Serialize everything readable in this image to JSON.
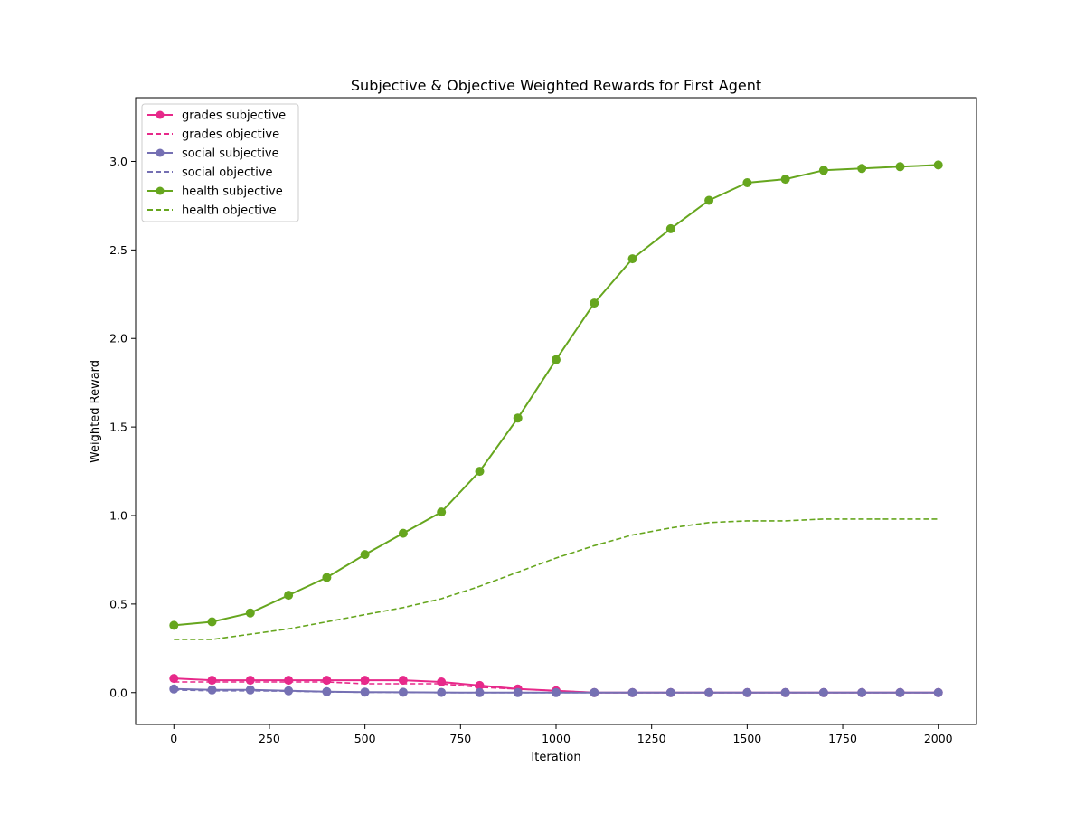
{
  "chart_data": {
    "type": "line",
    "title": "Subjective & Objective Weighted Rewards for First Agent",
    "xlabel": "Iteration",
    "ylabel": "Weighted Reward",
    "xlim": [
      -100,
      2100
    ],
    "ylim": [
      -0.18,
      3.36
    ],
    "x_ticks": [
      0,
      250,
      500,
      750,
      1000,
      1250,
      1500,
      1750,
      2000
    ],
    "x_tick_labels": [
      "0",
      "250",
      "500",
      "750",
      "1000",
      "1250",
      "1500",
      "1750",
      "2000"
    ],
    "y_ticks": [
      0.0,
      0.5,
      1.0,
      1.5,
      2.0,
      2.5,
      3.0
    ],
    "y_tick_labels": [
      "0.0",
      "0.5",
      "1.0",
      "1.5",
      "2.0",
      "2.5",
      "3.0"
    ],
    "grid": false,
    "legend_position": "top-left",
    "series": [
      {
        "name": "grades subjective",
        "color": "#e7298a",
        "style": "solid-marker",
        "x": [
          0,
          100,
          200,
          300,
          400,
          500,
          600,
          700,
          800,
          900,
          1000,
          1100,
          1200,
          1300,
          1400,
          1500,
          1600,
          1700,
          1800,
          1900,
          2000
        ],
        "values": [
          0.08,
          0.07,
          0.07,
          0.07,
          0.07,
          0.07,
          0.07,
          0.06,
          0.04,
          0.02,
          0.01,
          0.0,
          0.0,
          0.0,
          0.0,
          0.0,
          0.0,
          0.0,
          0.0,
          0.0,
          0.0
        ]
      },
      {
        "name": "grades objective",
        "color": "#e7298a",
        "style": "dashed",
        "x": [
          0,
          100,
          200,
          300,
          400,
          500,
          600,
          700,
          800,
          900,
          1000,
          1100,
          1200,
          1300,
          1400,
          1500,
          1600,
          1700,
          1800,
          1900,
          2000
        ],
        "values": [
          0.06,
          0.06,
          0.06,
          0.06,
          0.06,
          0.05,
          0.05,
          0.05,
          0.03,
          0.02,
          0.01,
          0.0,
          0.0,
          0.0,
          0.0,
          0.0,
          0.0,
          0.0,
          0.0,
          0.0,
          0.0
        ]
      },
      {
        "name": "social subjective",
        "color": "#7570b3",
        "style": "solid-marker",
        "x": [
          0,
          100,
          200,
          300,
          400,
          500,
          600,
          700,
          800,
          900,
          1000,
          1100,
          1200,
          1300,
          1400,
          1500,
          1600,
          1700,
          1800,
          1900,
          2000
        ],
        "values": [
          0.02,
          0.015,
          0.015,
          0.01,
          0.005,
          0.003,
          0.002,
          0.001,
          0.0,
          0.0,
          0.0,
          0.0,
          0.0,
          0.0,
          0.0,
          0.0,
          0.0,
          0.0,
          0.0,
          0.0,
          0.0
        ]
      },
      {
        "name": "social objective",
        "color": "#7570b3",
        "style": "dashed",
        "x": [
          0,
          100,
          200,
          300,
          400,
          500,
          600,
          700,
          800,
          900,
          1000,
          1100,
          1200,
          1300,
          1400,
          1500,
          1600,
          1700,
          1800,
          1900,
          2000
        ],
        "values": [
          0.015,
          0.01,
          0.01,
          0.008,
          0.004,
          0.002,
          0.001,
          0.0,
          0.0,
          0.0,
          0.0,
          0.0,
          0.0,
          0.0,
          0.0,
          0.0,
          0.0,
          0.0,
          0.0,
          0.0,
          0.0
        ]
      },
      {
        "name": "health subjective",
        "color": "#66a61e",
        "style": "solid-marker",
        "x": [
          0,
          100,
          200,
          300,
          400,
          500,
          600,
          700,
          800,
          900,
          1000,
          1100,
          1200,
          1300,
          1400,
          1500,
          1600,
          1700,
          1800,
          1900,
          2000
        ],
        "values": [
          0.38,
          0.4,
          0.45,
          0.55,
          0.65,
          0.78,
          0.9,
          1.02,
          1.25,
          1.55,
          1.88,
          2.2,
          2.45,
          2.62,
          2.78,
          2.88,
          2.9,
          2.95,
          2.96,
          2.97,
          2.98
        ]
      },
      {
        "name": "health objective",
        "color": "#66a61e",
        "style": "dashed",
        "x": [
          0,
          100,
          200,
          300,
          400,
          500,
          600,
          700,
          800,
          900,
          1000,
          1100,
          1200,
          1300,
          1400,
          1500,
          1600,
          1700,
          1800,
          1900,
          2000
        ],
        "values": [
          0.3,
          0.3,
          0.33,
          0.36,
          0.4,
          0.44,
          0.48,
          0.53,
          0.6,
          0.68,
          0.76,
          0.83,
          0.89,
          0.93,
          0.96,
          0.97,
          0.97,
          0.98,
          0.98,
          0.98,
          0.98
        ]
      }
    ]
  }
}
